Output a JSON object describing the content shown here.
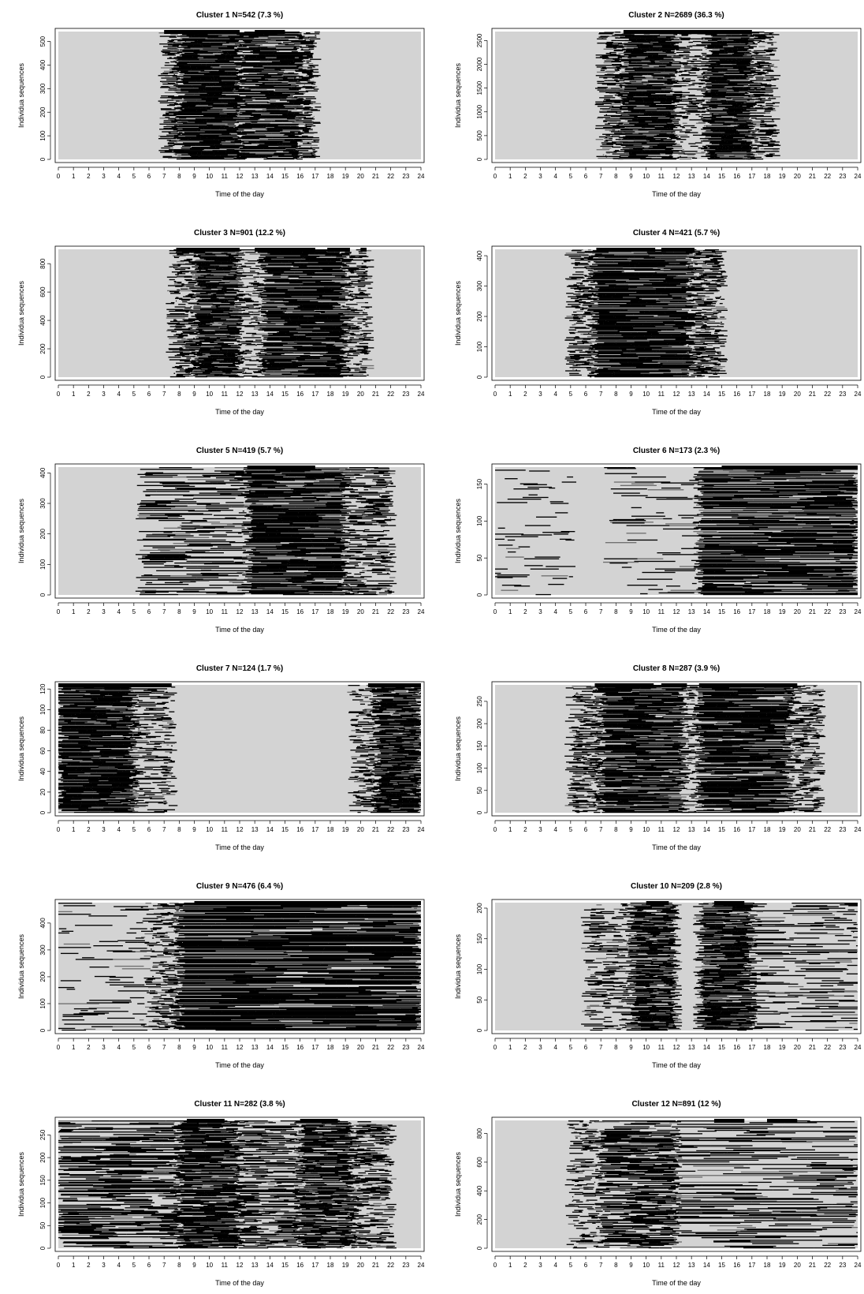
{
  "chart_data": [
    {
      "type": "heatmap",
      "title": "Cluster 1 N=542 (7.3 %)",
      "xlabel": "Time of the day",
      "ylabel": "Individua sequences",
      "xlim": [
        0,
        24
      ],
      "ylim": [
        0,
        542
      ],
      "x_ticks": [
        "0",
        "1",
        "2",
        "3",
        "4",
        "5",
        "6",
        "7",
        "8",
        "9",
        "10",
        "11",
        "12",
        "13",
        "14",
        "15",
        "16",
        "17",
        "18",
        "19",
        "20",
        "21",
        "22",
        "23",
        "24"
      ],
      "y_ticks": [
        "0",
        "100",
        "200",
        "300",
        "400",
        "500"
      ],
      "y_tick_values": [
        0,
        100,
        200,
        300,
        400,
        500
      ],
      "n": 542,
      "states": [
        {
          "start": 7.0,
          "end": 8.0,
          "level": 0.55
        },
        {
          "start": 8.0,
          "end": 12.0,
          "level": 0.95
        },
        {
          "start": 12.0,
          "end": 16.0,
          "level": 0.85
        },
        {
          "start": 16.0,
          "end": 17.0,
          "level": 0.55
        }
      ],
      "top_bars": [
        {
          "start": 7.0,
          "end": 12.0
        },
        {
          "start": 13.0,
          "end": 15.0
        }
      ]
    },
    {
      "type": "heatmap",
      "title": "Cluster 2 N=2689 (36.3 %)",
      "xlabel": "Time of the day",
      "ylabel": "Individua sequences",
      "xlim": [
        0,
        24
      ],
      "ylim": [
        0,
        2689
      ],
      "x_ticks": [
        "0",
        "1",
        "2",
        "3",
        "4",
        "5",
        "6",
        "7",
        "8",
        "9",
        "10",
        "11",
        "12",
        "13",
        "14",
        "15",
        "16",
        "17",
        "18",
        "19",
        "20",
        "21",
        "22",
        "23",
        "24"
      ],
      "y_ticks": [
        "0",
        "500",
        "1000",
        "1500",
        "2000",
        "2500"
      ],
      "y_tick_values": [
        0,
        500,
        1000,
        1500,
        2000,
        2500
      ],
      "n": 2689,
      "states": [
        {
          "start": 7.0,
          "end": 8.5,
          "level": 0.55
        },
        {
          "start": 8.5,
          "end": 12.0,
          "level": 0.92
        },
        {
          "start": 12.0,
          "end": 14.0,
          "level": 0.35
        },
        {
          "start": 14.0,
          "end": 17.0,
          "level": 0.95
        },
        {
          "start": 17.0,
          "end": 18.5,
          "level": 0.5
        }
      ],
      "top_bars": [
        {
          "start": 8.5,
          "end": 17.0
        }
      ]
    },
    {
      "type": "heatmap",
      "title": "Cluster 3 N=901 (12.2 %)",
      "xlabel": "Time of the day",
      "ylabel": "Individua sequences",
      "xlim": [
        0,
        24
      ],
      "ylim": [
        0,
        901
      ],
      "x_ticks": [
        "0",
        "1",
        "2",
        "3",
        "4",
        "5",
        "6",
        "7",
        "8",
        "9",
        "10",
        "11",
        "12",
        "13",
        "14",
        "15",
        "16",
        "17",
        "18",
        "19",
        "20",
        "21",
        "22",
        "23",
        "24"
      ],
      "y_ticks": [
        "0",
        "200",
        "400",
        "600",
        "800"
      ],
      "y_tick_values": [
        0,
        200,
        400,
        600,
        800
      ],
      "n": 901,
      "states": [
        {
          "start": 7.5,
          "end": 9.0,
          "level": 0.5
        },
        {
          "start": 9.0,
          "end": 12.0,
          "level": 0.93
        },
        {
          "start": 12.0,
          "end": 13.5,
          "level": 0.3
        },
        {
          "start": 13.5,
          "end": 19.0,
          "level": 0.9
        },
        {
          "start": 19.0,
          "end": 20.5,
          "level": 0.45
        }
      ],
      "top_bars": [
        {
          "start": 7.8,
          "end": 12.0
        },
        {
          "start": 13.0,
          "end": 17.0
        },
        {
          "start": 17.8,
          "end": 19.3
        },
        {
          "start": 20.0,
          "end": 20.4
        }
      ]
    },
    {
      "type": "heatmap",
      "title": "Cluster 4 N=421 (5.7 %)",
      "xlabel": "Time of the day",
      "ylabel": "Individua sequences",
      "xlim": [
        0,
        24
      ],
      "ylim": [
        0,
        421
      ],
      "x_ticks": [
        "0",
        "1",
        "2",
        "3",
        "4",
        "5",
        "6",
        "7",
        "8",
        "9",
        "10",
        "11",
        "12",
        "13",
        "14",
        "15",
        "16",
        "17",
        "18",
        "19",
        "20",
        "21",
        "22",
        "23",
        "24"
      ],
      "y_ticks": [
        "0",
        "100",
        "200",
        "300",
        "400"
      ],
      "y_tick_values": [
        0,
        100,
        200,
        300,
        400
      ],
      "n": 421,
      "states": [
        {
          "start": 5.0,
          "end": 6.5,
          "level": 0.55
        },
        {
          "start": 6.5,
          "end": 13.0,
          "level": 0.93
        },
        {
          "start": 13.0,
          "end": 15.0,
          "level": 0.55
        }
      ],
      "top_bars": [
        {
          "start": 6.7,
          "end": 10.6
        },
        {
          "start": 11.0,
          "end": 13.2
        }
      ]
    },
    {
      "type": "heatmap",
      "title": "Cluster 5 N=419 (5.7 %)",
      "xlabel": "Time of the day",
      "ylabel": "Individua sequences",
      "xlim": [
        0,
        24
      ],
      "ylim": [
        0,
        419
      ],
      "x_ticks": [
        "0",
        "1",
        "2",
        "3",
        "4",
        "5",
        "6",
        "7",
        "8",
        "9",
        "10",
        "11",
        "12",
        "13",
        "14",
        "15",
        "16",
        "17",
        "18",
        "19",
        "20",
        "21",
        "22",
        "23",
        "24"
      ],
      "y_ticks": [
        "0",
        "100",
        "200",
        "300",
        "400"
      ],
      "y_tick_values": [
        0,
        100,
        200,
        300,
        400
      ],
      "n": 419,
      "states": [
        {
          "start": 5.5,
          "end": 12.5,
          "level": 0.4
        },
        {
          "start": 12.5,
          "end": 19.0,
          "level": 0.9
        },
        {
          "start": 19.0,
          "end": 22.0,
          "level": 0.45
        }
      ],
      "top_bars": [
        {
          "start": 12.5,
          "end": 17.0
        }
      ]
    },
    {
      "type": "heatmap",
      "title": "Cluster 6 N=173 (2.3 %)",
      "xlabel": "Time of the day",
      "ylabel": "Individua sequences",
      "xlim": [
        0,
        24
      ],
      "ylim": [
        0,
        173
      ],
      "x_ticks": [
        "0",
        "1",
        "2",
        "3",
        "4",
        "5",
        "6",
        "7",
        "8",
        "9",
        "10",
        "11",
        "12",
        "13",
        "14",
        "15",
        "16",
        "17",
        "18",
        "19",
        "20",
        "21",
        "22",
        "23",
        "24"
      ],
      "y_ticks": [
        "0",
        "50",
        "100",
        "150"
      ],
      "y_tick_values": [
        0,
        50,
        100,
        150
      ],
      "n": 173,
      "states": [
        {
          "start": 0.0,
          "end": 5.0,
          "level": 0.12
        },
        {
          "start": 7.5,
          "end": 13.5,
          "level": 0.12
        },
        {
          "start": 13.5,
          "end": 24.0,
          "level": 0.82
        }
      ],
      "top_bars": [
        {
          "start": 15.0,
          "end": 24.0
        }
      ]
    },
    {
      "type": "heatmap",
      "title": "Cluster 7 N=124 (1.7 %)",
      "xlabel": "Time of the day",
      "ylabel": "Individua sequences",
      "xlim": [
        0,
        24
      ],
      "ylim": [
        0,
        124
      ],
      "x_ticks": [
        "0",
        "1",
        "2",
        "3",
        "4",
        "5",
        "6",
        "7",
        "8",
        "9",
        "10",
        "11",
        "12",
        "13",
        "14",
        "15",
        "16",
        "17",
        "18",
        "19",
        "20",
        "21",
        "22",
        "23",
        "24"
      ],
      "y_ticks": [
        "0",
        "20",
        "40",
        "60",
        "80",
        "100",
        "120"
      ],
      "y_tick_values": [
        0,
        20,
        40,
        60,
        80,
        100,
        120
      ],
      "n": 124,
      "states": [
        {
          "start": 0.0,
          "end": 5.0,
          "level": 0.96
        },
        {
          "start": 5.0,
          "end": 7.5,
          "level": 0.35
        },
        {
          "start": 19.5,
          "end": 21.0,
          "level": 0.4
        },
        {
          "start": 21.0,
          "end": 24.0,
          "level": 0.9
        }
      ],
      "top_bars": [
        {
          "start": 0.0,
          "end": 7.5
        },
        {
          "start": 20.5,
          "end": 24.0
        }
      ]
    },
    {
      "type": "heatmap",
      "title": "Cluster 8 N=287 (3.9 %)",
      "xlabel": "Time of the day",
      "ylabel": "Individua sequences",
      "xlim": [
        0,
        24
      ],
      "ylim": [
        0,
        287
      ],
      "x_ticks": [
        "0",
        "1",
        "2",
        "3",
        "4",
        "5",
        "6",
        "7",
        "8",
        "9",
        "10",
        "11",
        "12",
        "13",
        "14",
        "15",
        "16",
        "17",
        "18",
        "19",
        "20",
        "21",
        "22",
        "23",
        "24"
      ],
      "y_ticks": [
        "0",
        "50",
        "100",
        "150",
        "200",
        "250"
      ],
      "y_tick_values": [
        0,
        50,
        100,
        150,
        200,
        250
      ],
      "n": 287,
      "states": [
        {
          "start": 5.0,
          "end": 7.0,
          "level": 0.45
        },
        {
          "start": 7.0,
          "end": 12.5,
          "level": 0.88
        },
        {
          "start": 12.5,
          "end": 13.5,
          "level": 0.3
        },
        {
          "start": 13.5,
          "end": 19.5,
          "level": 0.88
        },
        {
          "start": 19.5,
          "end": 21.5,
          "level": 0.45
        }
      ],
      "top_bars": [
        {
          "start": 6.6,
          "end": 10.5
        },
        {
          "start": 11.0,
          "end": 12.7
        },
        {
          "start": 13.5,
          "end": 20.0
        }
      ]
    },
    {
      "type": "heatmap",
      "title": "Cluster 9 N=476 (6.4 %)",
      "xlabel": "Time of the day",
      "ylabel": "Individua sequences",
      "xlim": [
        0,
        24
      ],
      "ylim": [
        0,
        476
      ],
      "x_ticks": [
        "0",
        "1",
        "2",
        "3",
        "4",
        "5",
        "6",
        "7",
        "8",
        "9",
        "10",
        "11",
        "12",
        "13",
        "14",
        "15",
        "16",
        "17",
        "18",
        "19",
        "20",
        "21",
        "22",
        "23",
        "24"
      ],
      "y_ticks": [
        "0",
        "100",
        "200",
        "300",
        "400"
      ],
      "y_tick_values": [
        0,
        100,
        200,
        300,
        400
      ],
      "n": 476,
      "states": [
        {
          "start": 0.0,
          "end": 6.0,
          "level": 0.15
        },
        {
          "start": 6.0,
          "end": 8.0,
          "level": 0.4
        },
        {
          "start": 8.0,
          "end": 24.0,
          "level": 0.82
        }
      ],
      "top_bars": [
        {
          "start": 9.0,
          "end": 24.0
        }
      ]
    },
    {
      "type": "heatmap",
      "title": "Cluster 10 N=209 (2.8 %)",
      "xlabel": "Time of the day",
      "ylabel": "Individua sequences",
      "xlim": [
        0,
        24
      ],
      "ylim": [
        0,
        209
      ],
      "x_ticks": [
        "0",
        "1",
        "2",
        "3",
        "4",
        "5",
        "6",
        "7",
        "8",
        "9",
        "10",
        "11",
        "12",
        "13",
        "14",
        "15",
        "16",
        "17",
        "18",
        "19",
        "20",
        "21",
        "22",
        "23",
        "24"
      ],
      "y_ticks": [
        "0",
        "50",
        "100",
        "150",
        "200"
      ],
      "y_tick_values": [
        0,
        50,
        100,
        150,
        200
      ],
      "n": 209,
      "states": [
        {
          "start": 6.0,
          "end": 9.0,
          "level": 0.3
        },
        {
          "start": 9.0,
          "end": 12.0,
          "level": 0.85
        },
        {
          "start": 13.5,
          "end": 17.0,
          "level": 0.88
        },
        {
          "start": 17.0,
          "end": 24.0,
          "level": 0.25
        }
      ],
      "top_bars": [
        {
          "start": 10.0,
          "end": 11.5
        },
        {
          "start": 14.5,
          "end": 16.5
        }
      ]
    },
    {
      "type": "heatmap",
      "title": "Cluster 11 N=282 (3.8 %)",
      "xlabel": "Time of the day",
      "ylabel": "Individua sequences",
      "xlim": [
        0,
        24
      ],
      "ylim": [
        0,
        282
      ],
      "x_ticks": [
        "0",
        "1",
        "2",
        "3",
        "4",
        "5",
        "6",
        "7",
        "8",
        "9",
        "10",
        "11",
        "12",
        "13",
        "14",
        "15",
        "16",
        "17",
        "18",
        "19",
        "20",
        "21",
        "22",
        "23",
        "24"
      ],
      "y_ticks": [
        "0",
        "50",
        "100",
        "150",
        "200",
        "250"
      ],
      "y_tick_values": [
        0,
        50,
        100,
        150,
        200,
        250
      ],
      "n": 282,
      "states": [
        {
          "start": 0.0,
          "end": 8.0,
          "level": 0.55
        },
        {
          "start": 8.0,
          "end": 12.0,
          "level": 0.85
        },
        {
          "start": 12.0,
          "end": 16.0,
          "level": 0.55
        },
        {
          "start": 16.0,
          "end": 19.5,
          "level": 0.8
        },
        {
          "start": 19.5,
          "end": 22.0,
          "level": 0.45
        }
      ],
      "top_bars": [
        {
          "start": 8.5,
          "end": 11.0
        },
        {
          "start": 16.0,
          "end": 18.5
        }
      ]
    },
    {
      "type": "heatmap",
      "title": "Cluster 12 N=891 (12 %)",
      "xlabel": "Time of the day",
      "ylabel": "Individua sequences",
      "xlim": [
        0,
        24
      ],
      "ylim": [
        0,
        891
      ],
      "x_ticks": [
        "0",
        "1",
        "2",
        "3",
        "4",
        "5",
        "6",
        "7",
        "8",
        "9",
        "10",
        "11",
        "12",
        "13",
        "14",
        "15",
        "16",
        "17",
        "18",
        "19",
        "20",
        "21",
        "22",
        "23",
        "24"
      ],
      "y_ticks": [
        "0",
        "200",
        "400",
        "600",
        "800"
      ],
      "y_tick_values": [
        0,
        200,
        400,
        600,
        800
      ],
      "n": 891,
      "states": [
        {
          "start": 5.0,
          "end": 7.0,
          "level": 0.3
        },
        {
          "start": 7.0,
          "end": 12.0,
          "level": 0.7
        },
        {
          "start": 12.0,
          "end": 24.0,
          "level": 0.4
        }
      ],
      "top_bars": [
        {
          "start": 14.5,
          "end": 16.5
        },
        {
          "start": 18.0,
          "end": 20.0
        }
      ]
    }
  ]
}
